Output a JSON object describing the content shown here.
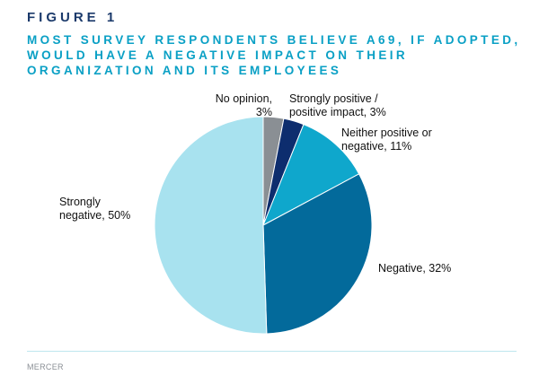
{
  "figure_label": "FIGURE 1",
  "figure_title": "MOST SURVEY RESPONDENTS BELIEVE A69, IF ADOPTED, WOULD HAVE A NEGATIVE IMPACT ON THEIR ORGANIZATION AND ITS EMPLOYEES",
  "source": "MERCER",
  "chart_data": {
    "type": "pie",
    "start": "12 o'clock, clockwise",
    "slices": [
      {
        "label_lines": [
          "No opinion,",
          "3%"
        ],
        "category": "No opinion",
        "value": 3,
        "color": "#8a8f94"
      },
      {
        "label_lines": [
          "Strongly positive /",
          "positive impact, 3%"
        ],
        "category": "Strongly positive / positive impact",
        "value": 3,
        "color": "#0d2d6e"
      },
      {
        "label_lines": [
          "Neither positive or",
          "negative, 11%"
        ],
        "category": "Neither positive or negative",
        "value": 11,
        "color": "#0fa7cc"
      },
      {
        "label_lines": [
          "Negative, 32%"
        ],
        "category": "Negative",
        "value": 32,
        "color": "#036a9b"
      },
      {
        "label_lines": [
          "Strongly",
          "negative, 50%"
        ],
        "category": "Strongly negative",
        "value": 50,
        "color": "#a8e2ef"
      }
    ]
  }
}
